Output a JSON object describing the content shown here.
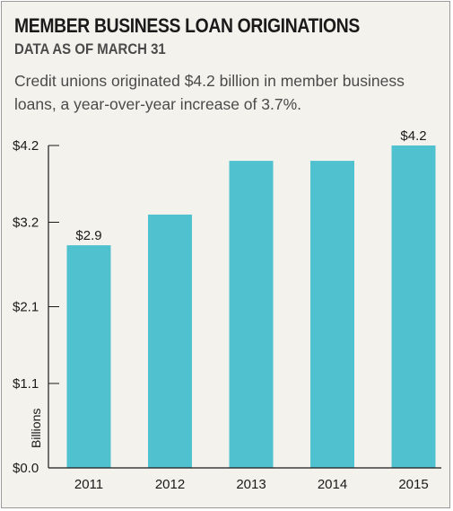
{
  "header": {
    "title": "MEMBER BUSINESS LOAN ORIGINATIONS",
    "subtitle": "DATA AS OF MARCH 31",
    "description": "Credit unions originated $4.2 billion in member business loans, a year-over-year increase of 3.7%."
  },
  "colors": {
    "bar": "#4fc1cf",
    "axis": "#1a1a1a",
    "background": "#f4f2ec"
  },
  "chart_data": {
    "type": "bar",
    "categories": [
      "2011",
      "2012",
      "2013",
      "2014",
      "2015"
    ],
    "values": [
      2.9,
      3.3,
      4.0,
      4.0,
      4.2
    ],
    "data_labels": [
      "$2.9",
      "",
      "",
      "",
      "$4.2"
    ],
    "yticks": [
      0.0,
      1.1,
      2.1,
      3.2,
      4.2
    ],
    "ytick_labels": [
      "$0.0",
      "$1.1",
      "$2.1",
      "$3.2",
      "$4.2"
    ],
    "ylim": [
      0,
      4.2
    ],
    "ylabel": "Billions",
    "xlabel": "",
    "grid": false,
    "legend": "none"
  }
}
